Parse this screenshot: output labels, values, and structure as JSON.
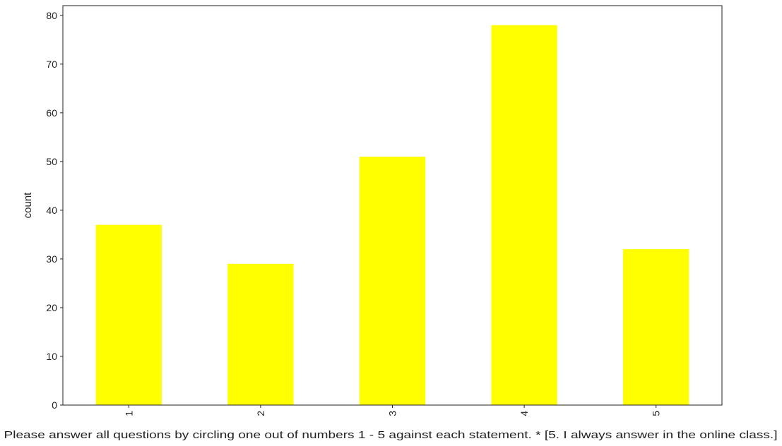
{
  "chart_data": {
    "type": "bar",
    "title": "",
    "xlabel": "Please answer all questions by circling one out of numbers 1 - 5 against each statement. * [5. I always answer in the online class.]",
    "ylabel": "count",
    "categories": [
      "1",
      "2",
      "3",
      "4",
      "5"
    ],
    "values": [
      37,
      29,
      51,
      78,
      32
    ],
    "ylim": [
      0,
      82
    ],
    "yticks": [
      0,
      10,
      20,
      30,
      40,
      50,
      60,
      70,
      80
    ],
    "bar_color": "#ffff00",
    "grid": false,
    "legend": "none",
    "xtick_rotation": "vertical"
  }
}
